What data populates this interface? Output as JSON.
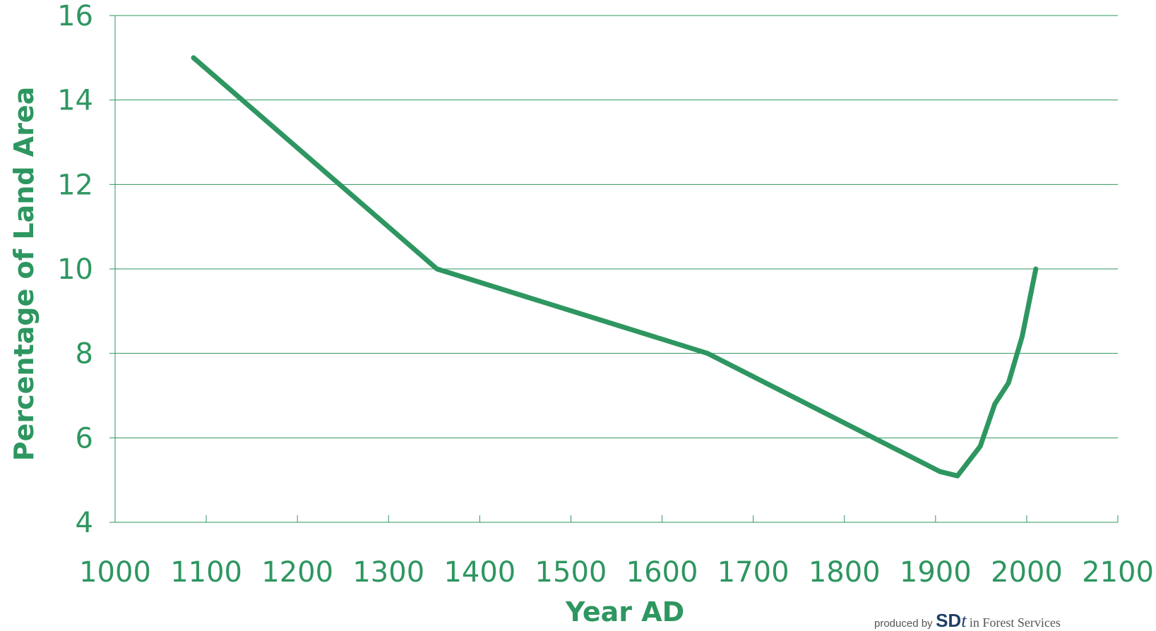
{
  "chart_data": {
    "type": "line",
    "xlabel": "Year AD",
    "ylabel": "Percentage of Land Area",
    "xlim": [
      1000,
      2100
    ],
    "ylim": [
      4,
      16
    ],
    "x_ticks": [
      1000,
      1100,
      1200,
      1300,
      1400,
      1500,
      1600,
      1700,
      1800,
      1900,
      2000,
      2100
    ],
    "y_ticks": [
      4,
      6,
      8,
      10,
      12,
      14,
      16
    ],
    "grid": "horizontal",
    "line_color": "#2e9660",
    "series": [
      {
        "x": [
          1086,
          1353,
          1650,
          1905,
          1924,
          1949,
          1965,
          1980,
          1995,
          2010
        ],
        "y": [
          15.0,
          10.0,
          8.0,
          5.2,
          5.1,
          5.8,
          6.8,
          7.3,
          8.4,
          10.0
        ]
      }
    ]
  },
  "credit": {
    "prefix": "produced by",
    "logo": "SD",
    "logo_mark": "t",
    "suffix": "in Forest Services"
  }
}
